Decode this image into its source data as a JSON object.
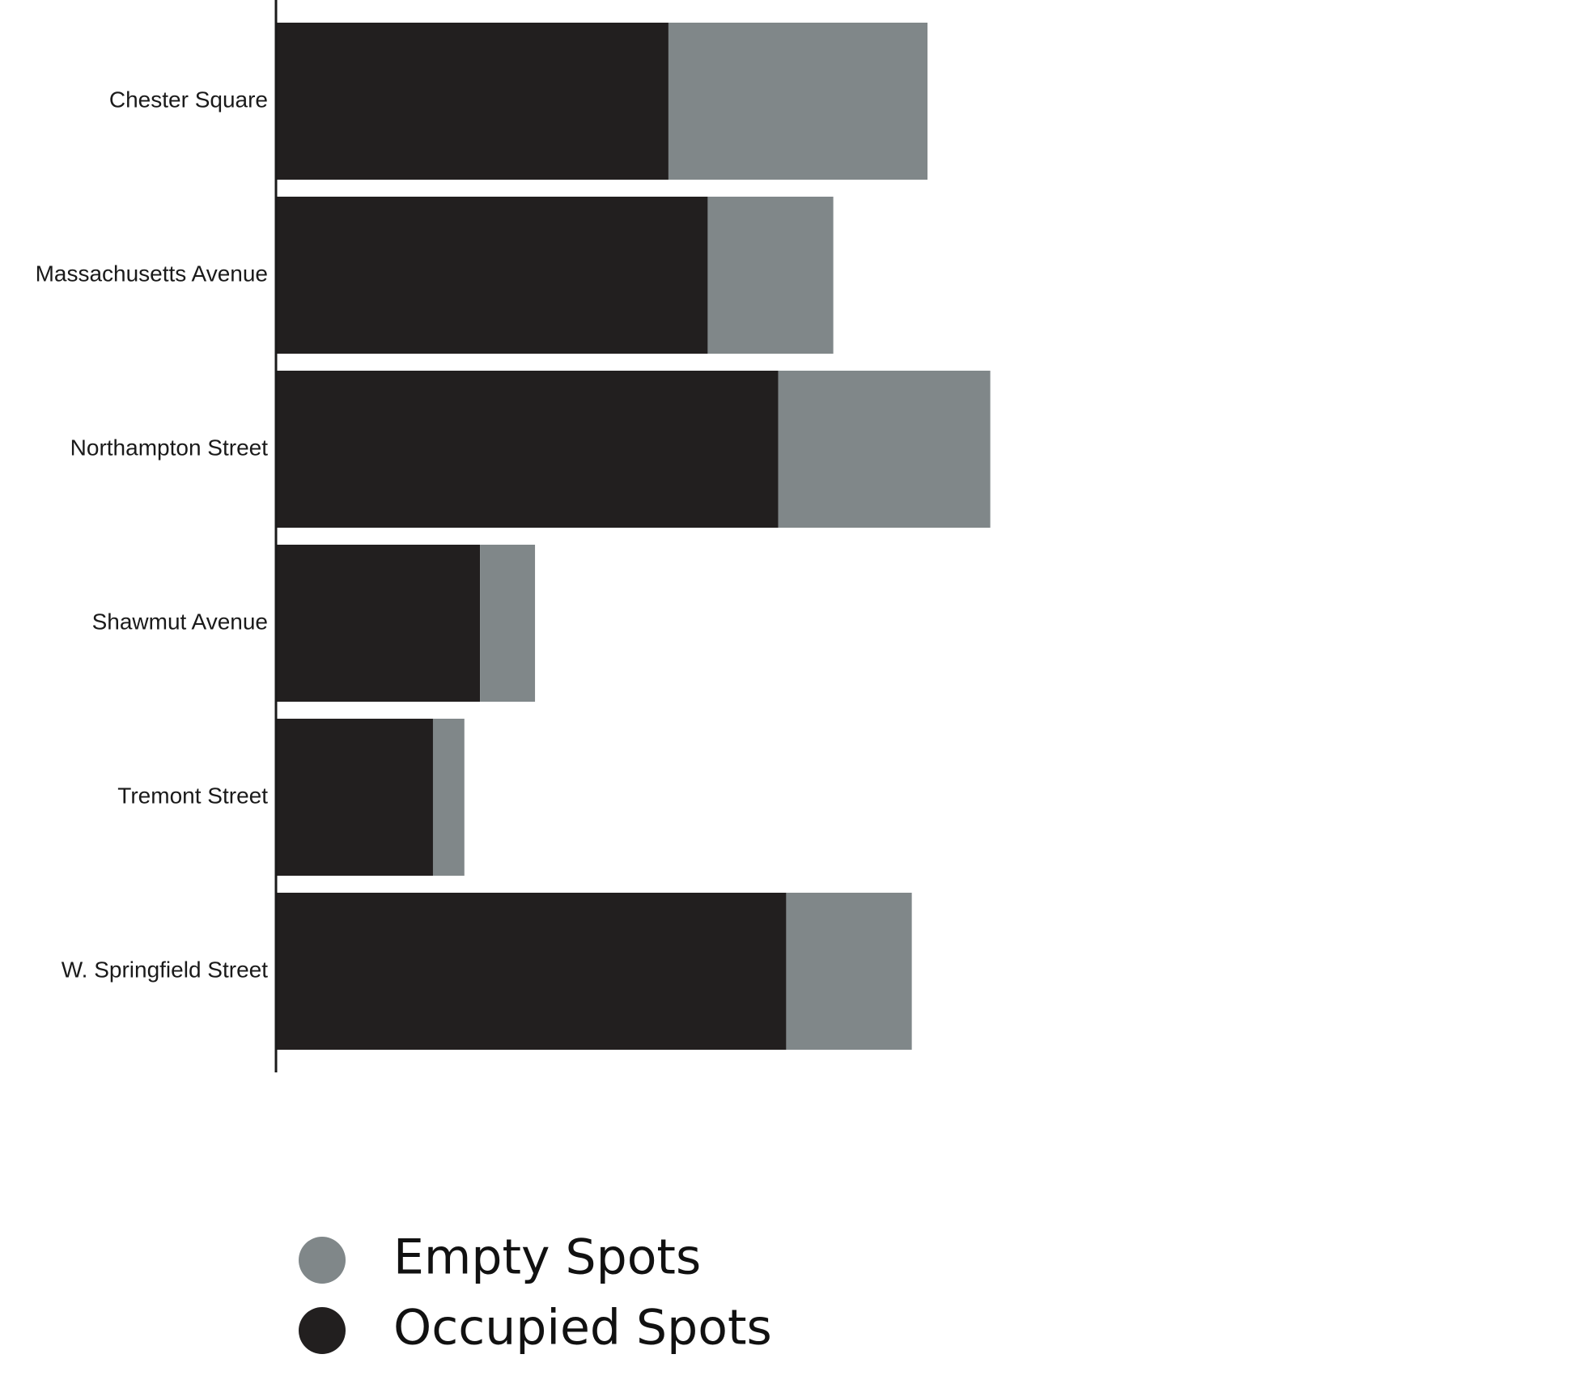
{
  "chart_data": {
    "type": "bar",
    "orientation": "horizontal",
    "stacked": true,
    "title": "",
    "xlabel": "",
    "ylabel": "",
    "categories": [
      "Chester Square",
      "Massachusetts Avenue",
      "Northampton Street",
      "Shawmut Avenue",
      "Tremont Street",
      "W. Springfield Street"
    ],
    "series": [
      {
        "name": "Occupied Spots",
        "color": "#221f1f",
        "values": [
          50,
          55,
          64,
          26,
          20,
          65
        ]
      },
      {
        "name": "Empty Spots",
        "color": "#808789",
        "values": [
          33,
          16,
          27,
          7,
          4,
          16
        ]
      }
    ],
    "xlim": [
      0,
      166
    ],
    "grid": false,
    "x_axis_visible": false,
    "legend": {
      "position": "bottom-left",
      "marker": "circle",
      "entries": [
        "Empty Spots",
        "Occupied Spots"
      ]
    }
  }
}
